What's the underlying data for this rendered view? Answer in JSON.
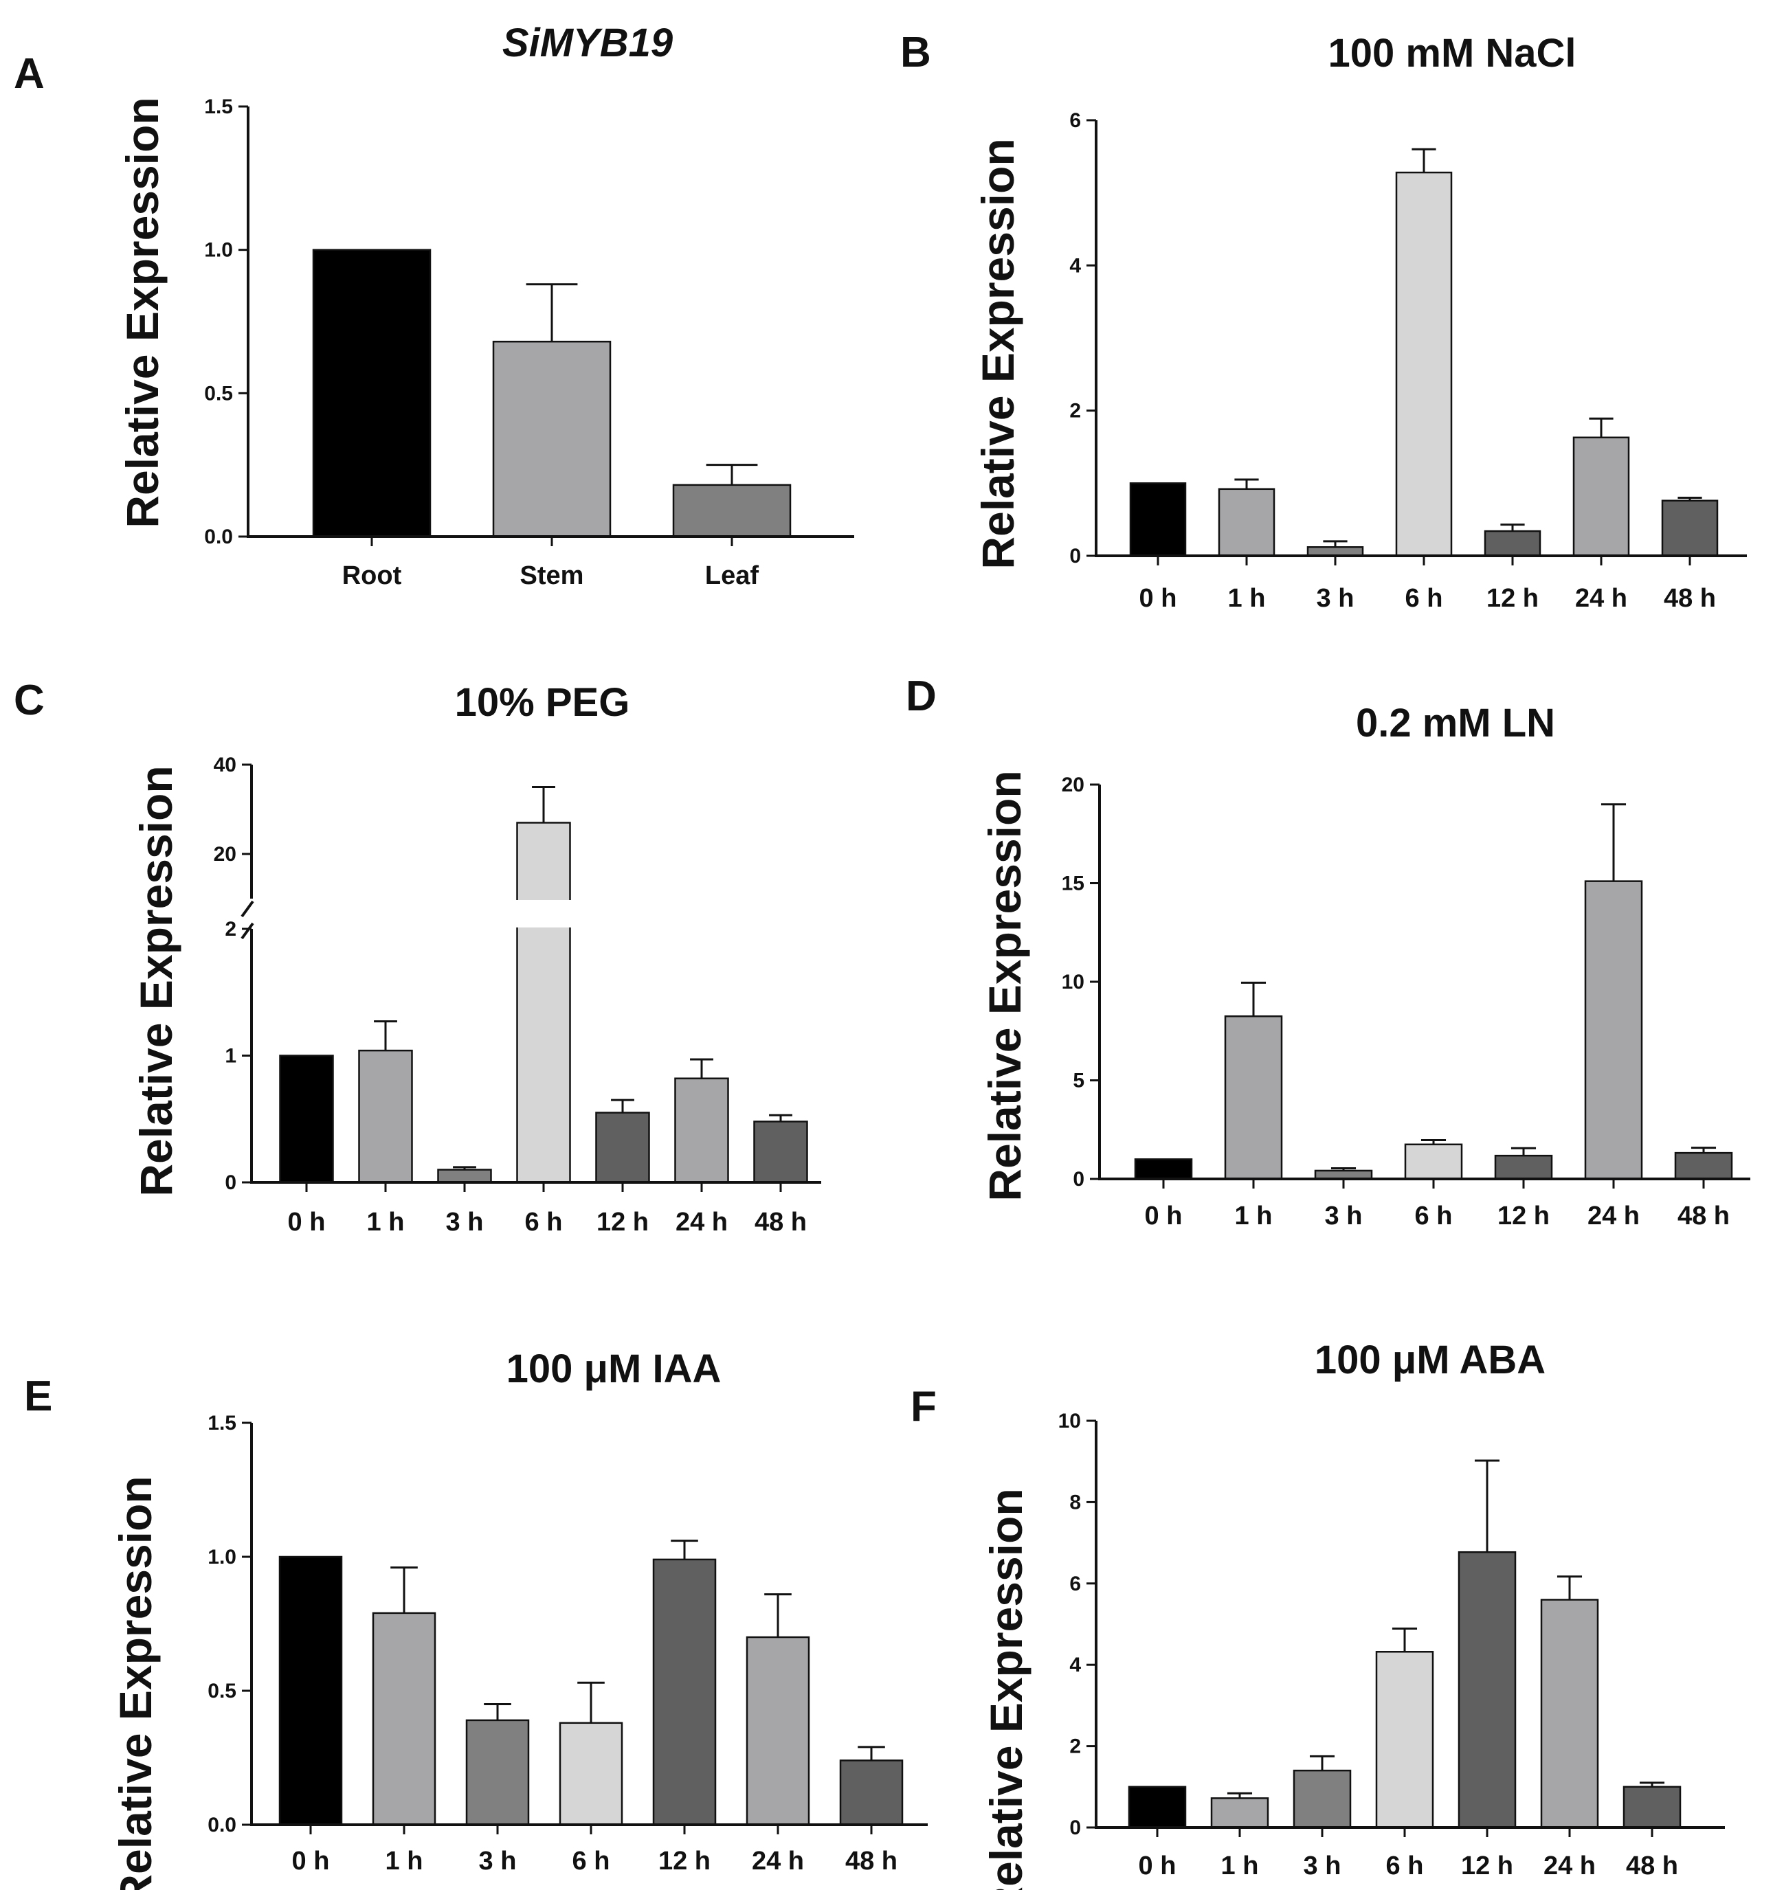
{
  "chart_data": [
    {
      "panel": "A",
      "type": "bar",
      "title": "SiMYB19",
      "title_italic": true,
      "xlabel": "",
      "ylabel": "Relative Expression",
      "categories": [
        "Root",
        "Stem",
        "Leaf"
      ],
      "values": [
        1.0,
        0.68,
        0.18
      ],
      "errors": [
        0.0,
        0.2,
        0.07
      ],
      "ylim": [
        0,
        1.5
      ],
      "yticks": [
        0.0,
        0.5,
        1.0,
        1.5
      ],
      "ytick_labels": [
        "0.0",
        "0.5",
        "1.0",
        "1.5"
      ],
      "bar_colors": [
        "#000000",
        "#a6a6a9",
        "#808080"
      ],
      "grid": false
    },
    {
      "panel": "B",
      "type": "bar",
      "title": "100 mM NaCl",
      "xlabel": "",
      "ylabel": "Relative Expression",
      "categories": [
        "0 h",
        "1 h",
        "3 h",
        "6 h",
        "12 h",
        "24 h",
        "48 h"
      ],
      "values": [
        1.0,
        0.92,
        0.12,
        5.28,
        0.34,
        1.63,
        0.76
      ],
      "errors": [
        0.0,
        0.13,
        0.08,
        0.32,
        0.09,
        0.26,
        0.04
      ],
      "ylim": [
        0,
        6
      ],
      "yticks": [
        0,
        2,
        4,
        6
      ],
      "ytick_labels": [
        "0",
        "2",
        "4",
        "6"
      ],
      "bar_colors": [
        "#000000",
        "#a6a6a9",
        "#808080",
        "#d6d6d6",
        "#606060",
        "#a6a6a9",
        "#606060"
      ],
      "grid": false
    },
    {
      "panel": "C",
      "type": "bar",
      "title": "10% PEG",
      "xlabel": "",
      "ylabel": "Relative Expression",
      "categories": [
        "0 h",
        "1 h",
        "3 h",
        "6 h",
        "12 h",
        "24 h",
        "48 h"
      ],
      "values": [
        1.0,
        1.04,
        0.1,
        27.0,
        0.55,
        0.82,
        0.48
      ],
      "errors": [
        0.0,
        0.23,
        0.02,
        8.0,
        0.1,
        0.15,
        0.05
      ],
      "ylim": [
        0,
        40
      ],
      "y_break": [
        2,
        10
      ],
      "yticks": [
        0,
        1,
        2,
        20,
        40
      ],
      "ytick_labels": [
        "0",
        "1",
        "2",
        "20",
        "40"
      ],
      "bar_colors": [
        "#000000",
        "#a6a6a9",
        "#808080",
        "#d6d6d6",
        "#606060",
        "#a6a6a9",
        "#606060"
      ],
      "grid": false
    },
    {
      "panel": "D",
      "type": "bar",
      "title": "0.2 mM LN",
      "xlabel": "",
      "ylabel": "Relative Expression",
      "categories": [
        "0 h",
        "1 h",
        "3 h",
        "6 h",
        "12 h",
        "24 h",
        "48 h"
      ],
      "values": [
        1.0,
        8.25,
        0.42,
        1.75,
        1.18,
        15.1,
        1.32
      ],
      "errors": [
        0.0,
        1.7,
        0.12,
        0.22,
        0.38,
        3.9,
        0.26
      ],
      "ylim": [
        0,
        20
      ],
      "yticks": [
        0,
        5,
        10,
        15,
        20
      ],
      "ytick_labels": [
        "0",
        "5",
        "10",
        "15",
        "20"
      ],
      "bar_colors": [
        "#000000",
        "#a6a6a9",
        "#808080",
        "#d6d6d6",
        "#606060",
        "#a6a6a9",
        "#606060"
      ],
      "grid": false
    },
    {
      "panel": "E",
      "type": "bar",
      "title": "100 μM IAA",
      "xlabel": "",
      "ylabel": "Relative Expression",
      "categories": [
        "0 h",
        "1 h",
        "3 h",
        "6 h",
        "12 h",
        "24 h",
        "48 h"
      ],
      "values": [
        1.0,
        0.79,
        0.39,
        0.38,
        0.99,
        0.7,
        0.24
      ],
      "errors": [
        0.0,
        0.17,
        0.06,
        0.15,
        0.07,
        0.16,
        0.05
      ],
      "ylim": [
        0,
        1.5
      ],
      "yticks": [
        0.0,
        0.5,
        1.0,
        1.5
      ],
      "ytick_labels": [
        "0.0",
        "0.5",
        "1.0",
        "1.5"
      ],
      "bar_colors": [
        "#000000",
        "#a6a6a9",
        "#808080",
        "#d6d6d6",
        "#606060",
        "#a6a6a9",
        "#606060"
      ],
      "grid": false
    },
    {
      "panel": "F",
      "type": "bar",
      "title": "100 μM ABA",
      "xlabel": "",
      "ylabel": "Relative Expression",
      "categories": [
        "0 h",
        "1 h",
        "3 h",
        "6 h",
        "12 h",
        "24 h",
        "48 h"
      ],
      "values": [
        1.0,
        0.72,
        1.4,
        4.32,
        6.77,
        5.6,
        1.0
      ],
      "errors": [
        0.0,
        0.12,
        0.35,
        0.57,
        2.25,
        0.57,
        0.1
      ],
      "ylim": [
        0,
        10
      ],
      "yticks": [
        0,
        2,
        4,
        6,
        8,
        10
      ],
      "ytick_labels": [
        "0",
        "2",
        "4",
        "6",
        "8",
        "10"
      ],
      "bar_colors": [
        "#000000",
        "#a6a6a9",
        "#808080",
        "#d6d6d6",
        "#606060",
        "#a6a6a9",
        "#606060"
      ],
      "grid": false
    }
  ]
}
